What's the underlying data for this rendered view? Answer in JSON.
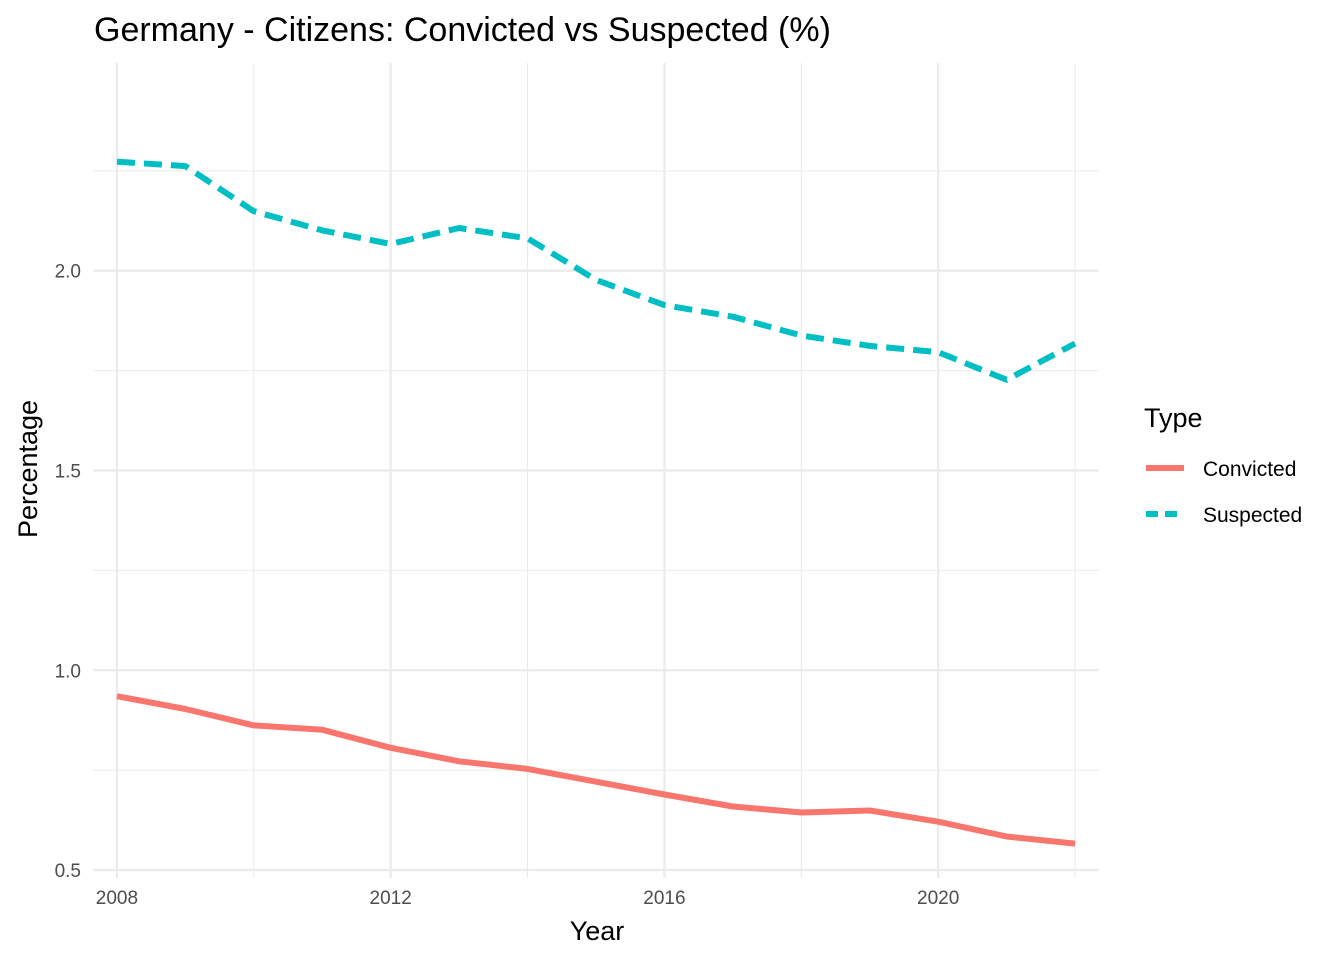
{
  "chart_data": {
    "type": "line",
    "title": "Germany - Citizens: Convicted vs Suspected (%)",
    "xlabel": "Year",
    "ylabel": "Percentage",
    "xlim": [
      2007.65,
      2022.35
    ],
    "ylim": [
      0.48,
      2.52
    ],
    "x_ticks": [
      2008,
      2012,
      2016,
      2020
    ],
    "x_tick_labels": [
      "2008",
      "2012",
      "2016",
      "2020"
    ],
    "y_ticks": [
      0.5,
      1.0,
      1.5,
      2.0
    ],
    "y_tick_labels": [
      "0.5",
      "1.0",
      "1.5",
      "2.0"
    ],
    "x_minor": [
      2010,
      2014,
      2018,
      2022
    ],
    "y_minor": [
      0.75,
      1.25,
      1.75,
      2.25
    ],
    "grid": true,
    "x": [
      2008,
      2009,
      2010,
      2011,
      2012,
      2013,
      2014,
      2015,
      2016,
      2017,
      2018,
      2019,
      2020,
      2021,
      2022
    ],
    "series": [
      {
        "name": "Convicted",
        "values": [
          0.935,
          0.903,
          0.862,
          0.851,
          0.806,
          0.772,
          0.753,
          0.721,
          0.689,
          0.659,
          0.644,
          0.649,
          0.621,
          0.584,
          0.566
        ],
        "color": "#F8766D",
        "dash": "solid"
      },
      {
        "name": "Suspected",
        "values": [
          2.273,
          2.262,
          2.149,
          2.101,
          2.067,
          2.107,
          2.081,
          1.977,
          1.914,
          1.885,
          1.838,
          1.812,
          1.796,
          1.727,
          1.818
        ],
        "color": "#00BFC4",
        "dash": "dashed"
      }
    ],
    "legend": {
      "title": "Type",
      "position": "right"
    }
  }
}
